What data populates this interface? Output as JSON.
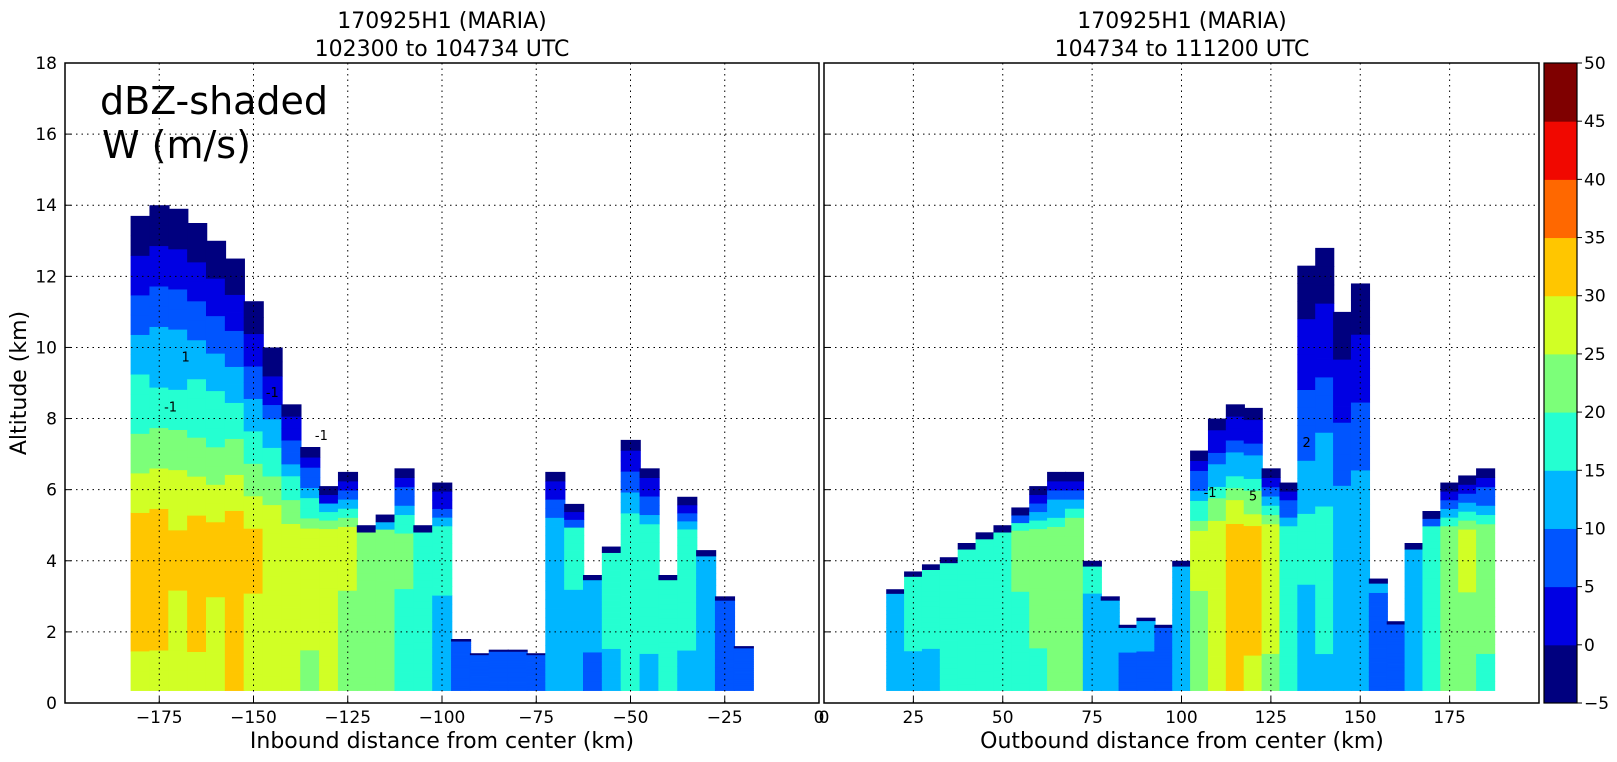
{
  "chart_data": [
    {
      "type": "heatmap",
      "title": "170925H1 (MARIA)",
      "subtitle": "102300 to 104734 UTC",
      "xlabel": "Inbound distance from center (km)",
      "ylabel": "Altitude (km)",
      "xlim": [
        -200,
        0
      ],
      "ylim": [
        0,
        18
      ],
      "xticks": [
        "−175",
        "−150",
        "−125",
        "−100",
        "−75",
        "−50",
        "−25",
        "0"
      ],
      "yticks": [
        "0",
        "2",
        "4",
        "6",
        "8",
        "10",
        "12",
        "14",
        "16",
        "18"
      ],
      "grid": true,
      "annotation": [
        "dBZ-shaded",
        "W (m/s)"
      ],
      "contour_labels": [
        "-1",
        "-1",
        "-1",
        "1"
      ],
      "columns": [
        {
          "x": -180,
          "top": 13.7,
          "peak": 32
        },
        {
          "x": -175,
          "top": 14.0,
          "peak": 32
        },
        {
          "x": -170,
          "top": 13.9,
          "peak": 31
        },
        {
          "x": -165,
          "top": 13.5,
          "peak": 32
        },
        {
          "x": -160,
          "top": 13.0,
          "peak": 31
        },
        {
          "x": -155,
          "top": 12.5,
          "peak": 33
        },
        {
          "x": -150,
          "top": 11.3,
          "peak": 31
        },
        {
          "x": -145,
          "top": 10.0,
          "peak": 29
        },
        {
          "x": -140,
          "top": 8.4,
          "peak": 28
        },
        {
          "x": -135,
          "top": 7.2,
          "peak": 27
        },
        {
          "x": -130,
          "top": 6.1,
          "peak": 28
        },
        {
          "x": -125,
          "top": 6.5,
          "peak": 26
        },
        {
          "x": -120,
          "top": 5.0,
          "peak": 25
        },
        {
          "x": -115,
          "top": 5.3,
          "peak": 24
        },
        {
          "x": -110,
          "top": 6.6,
          "peak": 21
        },
        {
          "x": -105,
          "top": 5.0,
          "peak": 18
        },
        {
          "x": -100,
          "top": 6.2,
          "peak": 16
        },
        {
          "x": -95,
          "top": 1.8,
          "peak": 10
        },
        {
          "x": -90,
          "top": 1.4,
          "peak": 8
        },
        {
          "x": -85,
          "top": 1.5,
          "peak": 8
        },
        {
          "x": -80,
          "top": 1.5,
          "peak": 9
        },
        {
          "x": -75,
          "top": 1.4,
          "peak": 9
        },
        {
          "x": -70,
          "top": 6.5,
          "peak": 15
        },
        {
          "x": -65,
          "top": 5.6,
          "peak": 16
        },
        {
          "x": -60,
          "top": 3.6,
          "peak": 12
        },
        {
          "x": -55,
          "top": 4.4,
          "peak": 17
        },
        {
          "x": -50,
          "top": 7.4,
          "peak": 20
        },
        {
          "x": -45,
          "top": 6.6,
          "peak": 17
        },
        {
          "x": -40,
          "top": 3.6,
          "peak": 19
        },
        {
          "x": -35,
          "top": 5.8,
          "peak": 17
        },
        {
          "x": -30,
          "top": 4.3,
          "peak": 13
        },
        {
          "x": -25,
          "top": 3.0,
          "peak": 10
        },
        {
          "x": -20,
          "top": 1.6,
          "peak": 8
        }
      ]
    },
    {
      "type": "heatmap",
      "title": "170925H1 (MARIA)",
      "subtitle": "104734 to 111200 UTC",
      "xlabel": "Outbound distance from center (km)",
      "ylabel": "",
      "xlim": [
        0,
        200
      ],
      "ylim": [
        0,
        18
      ],
      "xticks": [
        "0",
        "25",
        "50",
        "75",
        "100",
        "125",
        "150",
        "175"
      ],
      "grid": true,
      "contour_labels": [
        "-1",
        "5",
        "2"
      ],
      "columns": [
        {
          "x": 20,
          "top": 3.2,
          "peak": 15
        },
        {
          "x": 25,
          "top": 3.7,
          "peak": 17
        },
        {
          "x": 30,
          "top": 3.9,
          "peak": 17
        },
        {
          "x": 35,
          "top": 4.1,
          "peak": 18
        },
        {
          "x": 40,
          "top": 4.5,
          "peak": 19
        },
        {
          "x": 45,
          "top": 4.8,
          "peak": 19
        },
        {
          "x": 50,
          "top": 5.0,
          "peak": 20
        },
        {
          "x": 55,
          "top": 5.5,
          "peak": 21
        },
        {
          "x": 60,
          "top": 6.1,
          "peak": 22
        },
        {
          "x": 65,
          "top": 6.5,
          "peak": 24
        },
        {
          "x": 70,
          "top": 6.5,
          "peak": 25
        },
        {
          "x": 75,
          "top": 4.0,
          "peak": 16
        },
        {
          "x": 80,
          "top": 3.0,
          "peak": 14
        },
        {
          "x": 85,
          "top": 2.2,
          "peak": 12
        },
        {
          "x": 90,
          "top": 2.4,
          "peak": 12
        },
        {
          "x": 95,
          "top": 2.2,
          "peak": 11
        },
        {
          "x": 100,
          "top": 4.0,
          "peak": 14
        },
        {
          "x": 105,
          "top": 7.1,
          "peak": 26
        },
        {
          "x": 110,
          "top": 8.0,
          "peak": 30
        },
        {
          "x": 115,
          "top": 8.4,
          "peak": 33
        },
        {
          "x": 120,
          "top": 8.3,
          "peak": 32
        },
        {
          "x": 125,
          "top": 6.6,
          "peak": 27
        },
        {
          "x": 130,
          "top": 6.2,
          "peak": 18
        },
        {
          "x": 135,
          "top": 12.3,
          "peak": 16
        },
        {
          "x": 140,
          "top": 12.8,
          "peak": 17
        },
        {
          "x": 145,
          "top": 11.0,
          "peak": 14
        },
        {
          "x": 150,
          "top": 11.8,
          "peak": 15
        },
        {
          "x": 155,
          "top": 3.5,
          "peak": 11
        },
        {
          "x": 160,
          "top": 2.3,
          "peak": 10
        },
        {
          "x": 165,
          "top": 4.5,
          "peak": 15
        },
        {
          "x": 170,
          "top": 5.4,
          "peak": 20
        },
        {
          "x": 175,
          "top": 6.2,
          "peak": 24
        },
        {
          "x": 180,
          "top": 6.4,
          "peak": 26
        },
        {
          "x": 185,
          "top": 6.6,
          "peak": 22
        }
      ]
    }
  ],
  "colorbar": {
    "levels": [
      "50",
      "45",
      "40",
      "35",
      "30",
      "25",
      "20",
      "15",
      "10",
      "5",
      "0",
      "−5"
    ],
    "colors": [
      "#00007f",
      "#0000e3",
      "#0055ff",
      "#00b6ff",
      "#25ffd1",
      "#7cff79",
      "#d1ff25",
      "#ffc600",
      "#ff6800",
      "#f10800",
      "#7f0000"
    ]
  }
}
